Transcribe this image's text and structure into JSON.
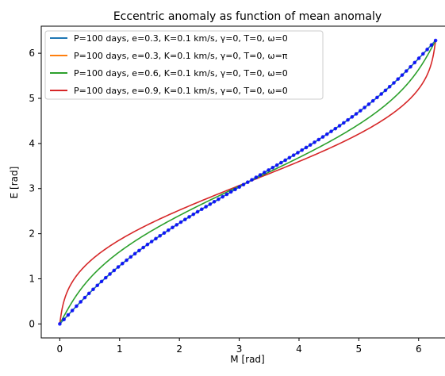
{
  "chart_data": {
    "type": "line",
    "title": "Eccentric anomaly as function of mean anomaly",
    "xlabel": "M [rad]",
    "ylabel": "E [rad]",
    "xlim": [
      -0.31,
      6.6
    ],
    "ylim": [
      -0.31,
      6.6
    ],
    "xticks": [
      0,
      1,
      2,
      3,
      4,
      5,
      6
    ],
    "yticks": [
      0,
      1,
      2,
      3,
      4,
      5,
      6
    ],
    "grid": false,
    "legend_position": "top-left",
    "scatter_color": "#0000ff",
    "series": [
      {
        "name": "P=100 days, e=0.3, K=0.1 km/s, γ=0, T=0, ω=0",
        "eccentricity": 0.3,
        "color": "#1f77b4"
      },
      {
        "name": "P=100 days, e=0.3, K=0.1 km/s, γ=0, T=0, ω=π",
        "eccentricity": 0.3,
        "color": "#ff7f0e"
      },
      {
        "name": "P=100 days, e=0.6, K=0.1 km/s, γ=0, T=0, ω=0",
        "eccentricity": 0.6,
        "color": "#2ca02c"
      },
      {
        "name": "P=100 days, e=0.9, K=0.1 km/s, γ=0, T=0, ω=0",
        "eccentricity": 0.9,
        "color": "#d62728"
      }
    ]
  }
}
